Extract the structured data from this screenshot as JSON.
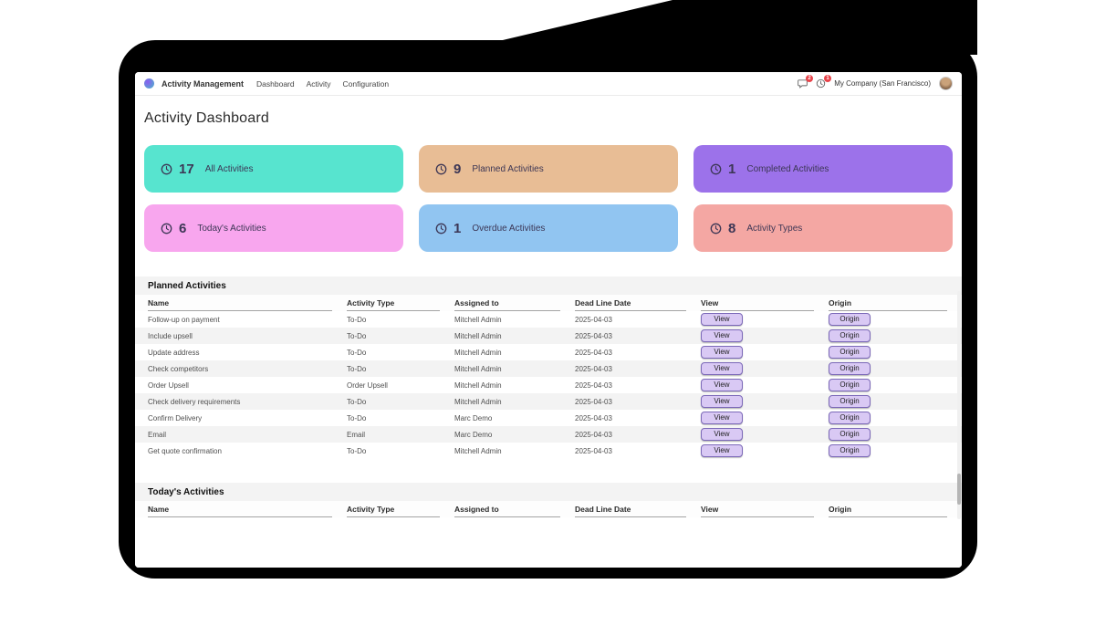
{
  "topbar": {
    "app_name": "Activity Management",
    "menu": [
      "Dashboard",
      "Activity",
      "Configuration"
    ],
    "company": "My Company (San Francisco)",
    "badges": [
      {
        "icon": "chat-icon",
        "count": "2"
      },
      {
        "icon": "clock-icon",
        "count": "1"
      }
    ]
  },
  "page_title": "Activity Dashboard",
  "cards": [
    {
      "count": "17",
      "label": "All Activities",
      "bg": "#57e4cf"
    },
    {
      "count": "9",
      "label": "Planned Activities",
      "bg": "#e8bd95"
    },
    {
      "count": "1",
      "label": "Completed Activities",
      "bg": "#9c72ea"
    },
    {
      "count": "6",
      "label": "Today's Activities",
      "bg": "#f8a6ee"
    },
    {
      "count": "1",
      "label": "Overdue Activities",
      "bg": "#91c5f1"
    },
    {
      "count": "8",
      "label": "Activity Types",
      "bg": "#f4a7a3"
    }
  ],
  "planned": {
    "title": "Planned Activities",
    "columns": [
      "Name",
      "Activity Type",
      "Assigned to",
      "Dead Line Date",
      "View",
      "Origin"
    ],
    "view_label": "View",
    "origin_label": "Origin",
    "rows": [
      [
        "Follow-up on payment",
        "To-Do",
        "Mitchell Admin",
        "2025-04-03"
      ],
      [
        "Include upsell",
        "To-Do",
        "Mitchell Admin",
        "2025-04-03"
      ],
      [
        "Update address",
        "To-Do",
        "Mitchell Admin",
        "2025-04-03"
      ],
      [
        "Check competitors",
        "To-Do",
        "Mitchell Admin",
        "2025-04-03"
      ],
      [
        "Order Upsell",
        "Order Upsell",
        "Mitchell Admin",
        "2025-04-03"
      ],
      [
        "Check delivery requirements",
        "To-Do",
        "Mitchell Admin",
        "2025-04-03"
      ],
      [
        "Confirm Delivery",
        "To-Do",
        "Marc Demo",
        "2025-04-03"
      ],
      [
        "Email",
        "Email",
        "Marc Demo",
        "2025-04-03"
      ],
      [
        "Get quote confirmation",
        "To-Do",
        "Mitchell Admin",
        "2025-04-03"
      ]
    ]
  },
  "today": {
    "title": "Today's Activities",
    "columns": [
      "Name",
      "Activity Type",
      "Assigned to",
      "Dead Line Date",
      "View",
      "Origin"
    ]
  }
}
